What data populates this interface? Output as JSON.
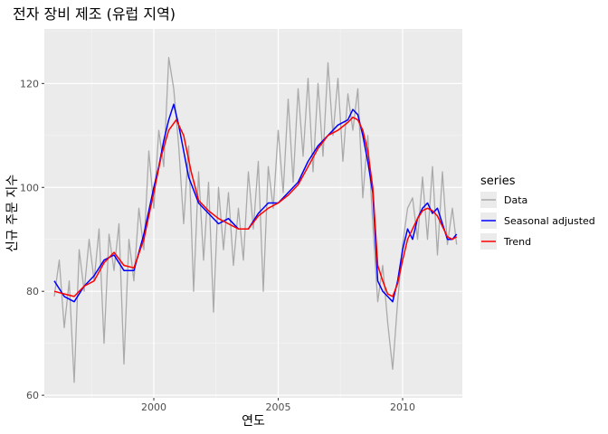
{
  "chart_data": {
    "type": "line",
    "title": "전자 장비 제조 (유럽 지역)",
    "xlabel": "연도",
    "ylabel": "신규 주문 지수",
    "xlim": [
      1995.6,
      2012.4
    ],
    "ylim": [
      59.5,
      130.5
    ],
    "x_ticks": [
      2000,
      2005,
      2010
    ],
    "y_ticks": [
      60,
      80,
      100,
      120
    ],
    "grid": true,
    "legend": {
      "title": "series",
      "placement": "right"
    },
    "series": [
      {
        "name": "Data",
        "color": "#aaaaaa",
        "x": [
          1996.0,
          1996.2,
          1996.4,
          1996.6,
          1996.8,
          1997.0,
          1997.2,
          1997.4,
          1997.6,
          1997.8,
          1998.0,
          1998.2,
          1998.4,
          1998.6,
          1998.8,
          1999.0,
          1999.2,
          1999.4,
          1999.6,
          1999.8,
          2000.0,
          2000.2,
          2000.4,
          2000.6,
          2000.8,
          2001.0,
          2001.2,
          2001.4,
          2001.6,
          2001.8,
          2002.0,
          2002.2,
          2002.4,
          2002.6,
          2002.8,
          2003.0,
          2003.2,
          2003.4,
          2003.6,
          2003.8,
          2004.0,
          2004.2,
          2004.4,
          2004.6,
          2004.8,
          2005.0,
          2005.2,
          2005.4,
          2005.6,
          2005.8,
          2006.0,
          2006.2,
          2006.4,
          2006.6,
          2006.8,
          2007.0,
          2007.2,
          2007.4,
          2007.6,
          2007.8,
          2008.0,
          2008.2,
          2008.4,
          2008.6,
          2008.8,
          2009.0,
          2009.2,
          2009.4,
          2009.6,
          2009.8,
          2010.0,
          2010.2,
          2010.4,
          2010.6,
          2010.8,
          2011.0,
          2011.2,
          2011.4,
          2011.6,
          2011.8,
          2012.0,
          2012.17
        ],
        "values": [
          79.0,
          86.0,
          73.0,
          82.0,
          62.5,
          88.0,
          80.0,
          90.0,
          82.0,
          92.0,
          70.0,
          91.0,
          84.0,
          93.0,
          66.0,
          90.0,
          82.0,
          96.0,
          88.0,
          107.0,
          96.0,
          111.0,
          104.0,
          125.0,
          119.0,
          108.0,
          93.0,
          108.0,
          80.0,
          103.0,
          86.0,
          101.0,
          76.0,
          100.0,
          88.0,
          99.0,
          85.0,
          96.0,
          86.0,
          103.0,
          92.0,
          105.0,
          80.0,
          104.0,
          96.0,
          111.0,
          99.0,
          117.0,
          101.0,
          119.0,
          106.0,
          121.0,
          103.0,
          120.0,
          106.0,
          124.0,
          110.0,
          121.0,
          105.0,
          118.0,
          111.0,
          119.0,
          98.0,
          110.0,
          93.0,
          78.0,
          85.0,
          74.0,
          65.0,
          78.0,
          89.0,
          96.0,
          98.0,
          90.0,
          102.0,
          90.0,
          104.0,
          87.0,
          103.0,
          89.0,
          96.0,
          89.0
        ]
      },
      {
        "name": "Seasonal adjusted",
        "color": "#0000ff",
        "x": [
          1996.0,
          1996.4,
          1996.8,
          1997.2,
          1997.6,
          1998.0,
          1998.4,
          1998.8,
          1999.2,
          1999.6,
          2000.0,
          2000.2,
          2000.4,
          2000.6,
          2000.8,
          2001.0,
          2001.2,
          2001.4,
          2001.8,
          2002.2,
          2002.6,
          2003.0,
          2003.4,
          2003.8,
          2004.2,
          2004.6,
          2005.0,
          2005.4,
          2005.8,
          2006.2,
          2006.6,
          2007.0,
          2007.4,
          2007.8,
          2008.0,
          2008.2,
          2008.4,
          2008.6,
          2008.8,
          2009.0,
          2009.2,
          2009.4,
          2009.6,
          2009.8,
          2010.0,
          2010.2,
          2010.4,
          2010.6,
          2010.8,
          2011.0,
          2011.2,
          2011.4,
          2011.6,
          2011.8,
          2012.0,
          2012.17
        ],
        "values": [
          82.0,
          79.0,
          78.0,
          81.0,
          83.0,
          86.0,
          87.0,
          84.0,
          84.0,
          91.0,
          100.0,
          104.0,
          109.0,
          113.0,
          116.0,
          112.0,
          107.0,
          102.0,
          97.0,
          95.0,
          93.0,
          94.0,
          92.0,
          92.0,
          95.0,
          97.0,
          97.0,
          99.0,
          101.0,
          105.0,
          108.0,
          110.0,
          112.0,
          113.0,
          115.0,
          114.0,
          110.0,
          105.0,
          99.0,
          82.0,
          80.0,
          79.0,
          78.0,
          82.0,
          88.0,
          92.0,
          90.0,
          94.0,
          96.0,
          97.0,
          95.0,
          96.0,
          93.0,
          90.0,
          90.0,
          91.0
        ]
      },
      {
        "name": "Trend",
        "color": "#ff0000",
        "x": [
          1996.0,
          1996.4,
          1996.8,
          1997.2,
          1997.6,
          1998.0,
          1998.4,
          1998.8,
          1999.2,
          1999.6,
          2000.0,
          2000.3,
          2000.6,
          2000.9,
          2001.2,
          2001.5,
          2001.8,
          2002.2,
          2002.6,
          2003.0,
          2003.4,
          2003.8,
          2004.2,
          2004.6,
          2005.0,
          2005.4,
          2005.8,
          2006.2,
          2006.6,
          2007.0,
          2007.4,
          2007.8,
          2008.0,
          2008.2,
          2008.4,
          2008.6,
          2008.8,
          2009.0,
          2009.2,
          2009.4,
          2009.6,
          2009.8,
          2010.0,
          2010.2,
          2010.4,
          2010.6,
          2010.8,
          2011.0,
          2011.2,
          2011.4,
          2011.6,
          2011.8,
          2012.0,
          2012.17
        ],
        "values": [
          80.0,
          79.5,
          79.0,
          81.0,
          82.0,
          85.5,
          87.5,
          85.0,
          84.5,
          90.0,
          99.0,
          106.0,
          111.0,
          113.0,
          110.0,
          103.0,
          97.5,
          95.5,
          94.0,
          93.0,
          92.0,
          92.0,
          94.5,
          96.0,
          97.0,
          98.5,
          100.5,
          104.0,
          107.5,
          110.0,
          111.0,
          112.5,
          113.5,
          113.0,
          111.0,
          107.0,
          100.0,
          85.0,
          82.0,
          79.5,
          79.0,
          81.5,
          86.0,
          90.0,
          92.0,
          94.0,
          95.5,
          96.0,
          95.5,
          94.5,
          92.5,
          90.5,
          90.0,
          90.5
        ]
      }
    ]
  }
}
